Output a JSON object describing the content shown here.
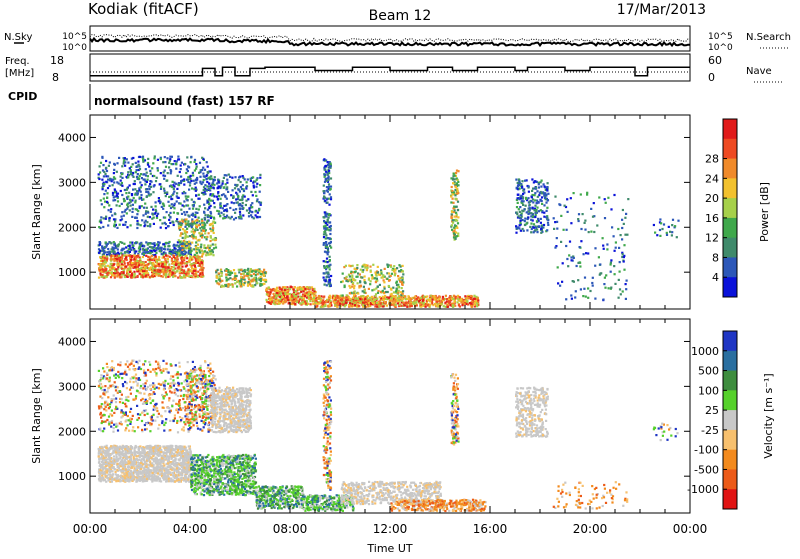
{
  "header": {
    "station": "Kodiak (fitACF)",
    "beam": "Beam 12",
    "date": "17/Mar/2013"
  },
  "noise_panel": {
    "left_label": "N.Sky",
    "right_label": "N.Search",
    "left_ticks": [
      "10^5",
      "10^0"
    ],
    "right_ticks": [
      "10^5",
      "10^0"
    ]
  },
  "freq_panel": {
    "left_label_line1": "Freq.",
    "left_label_line2": "[MHz]",
    "right_label": "Nave",
    "left_ticks": [
      "18",
      "8"
    ],
    "right_ticks": [
      "60",
      "0"
    ]
  },
  "cpid": {
    "label": "CPID",
    "value": "normalsound (fast) 157 RF"
  },
  "chart_data": [
    {
      "type": "heatmap",
      "title": "",
      "ylabel": "Slant Range [km]",
      "xlabel": "",
      "ylim": [
        180,
        4500
      ],
      "y_ticks": [
        "1000",
        "2000",
        "3000",
        "4000"
      ],
      "colorbar": {
        "label": "Power [dB]",
        "ticks": [
          "4",
          "8",
          "12",
          "16",
          "20",
          "24",
          "28"
        ],
        "colors": [
          "#0a12d9",
          "#2c57b8",
          "#3f8a6b",
          "#3fa84b",
          "#a6d04a",
          "#f2c12e",
          "#f08a2a",
          "#ee4a22",
          "#e11a1a"
        ]
      }
    },
    {
      "type": "heatmap",
      "title": "",
      "ylabel": "Slant Range [km]",
      "xlabel": "Time UT",
      "ylim": [
        180,
        4500
      ],
      "y_ticks": [
        "1000",
        "2000",
        "3000",
        "4000"
      ],
      "x_ticks": [
        "00:00",
        "04:00",
        "08:00",
        "12:00",
        "16:00",
        "20:00",
        "00:00"
      ],
      "colorbar": {
        "label": "Velocity [m s⁻¹]",
        "ticks": [
          "1000",
          "500",
          "100",
          "25",
          "-25",
          "-100",
          "-500",
          "-1000"
        ],
        "colors": [
          "#1f36c4",
          "#2a6fa0",
          "#3e8d3e",
          "#56d12b",
          "#c8c8c8",
          "#f7c06e",
          "#f38a1d",
          "#ec5a18",
          "#e11414"
        ]
      }
    }
  ]
}
